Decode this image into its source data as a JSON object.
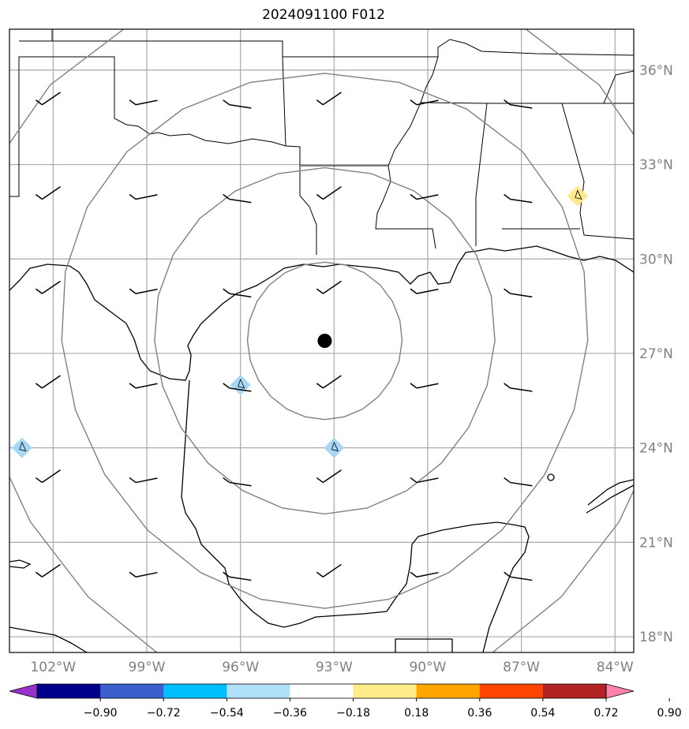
{
  "title": "2024091100 F012",
  "map": {
    "lat_ticks": [
      {
        "value": 36,
        "label": "36°N"
      },
      {
        "value": 33,
        "label": "33°N"
      },
      {
        "value": 30,
        "label": "30°N"
      },
      {
        "value": 27,
        "label": "27°N"
      },
      {
        "value": 24,
        "label": "24°N"
      },
      {
        "value": 21,
        "label": "21°N"
      },
      {
        "value": 18,
        "label": "18°N"
      }
    ],
    "lon_ticks": [
      {
        "value": -102,
        "label": "102°W"
      },
      {
        "value": -99,
        "label": "99°W"
      },
      {
        "value": -96,
        "label": "96°W"
      },
      {
        "value": -93,
        "label": "93°W"
      },
      {
        "value": -90,
        "label": "90°W"
      },
      {
        "value": -87,
        "label": "87°W"
      },
      {
        "value": -84,
        "label": "84°W"
      }
    ],
    "extent": {
      "lon_min": -103.4,
      "lon_max": -83.4,
      "lat_min": 17.5,
      "lat_max": 37.3
    },
    "storm_center": {
      "lon": -93.3,
      "lat": 27.4
    },
    "range_rings_deg": [
      2.5,
      5.5,
      8.5,
      11.5
    ],
    "grid_color": "#a9a9a9",
    "ring_color": "#808080",
    "coast_color": "#000000"
  },
  "wind_barbs": [
    {
      "lon": -102,
      "lat": 35
    },
    {
      "lon": -99,
      "lat": 35
    },
    {
      "lon": -96,
      "lat": 35
    },
    {
      "lon": -93,
      "lat": 35
    },
    {
      "lon": -90,
      "lat": 35
    },
    {
      "lon": -87,
      "lat": 35
    },
    {
      "lon": -102,
      "lat": 32
    },
    {
      "lon": -99,
      "lat": 32
    },
    {
      "lon": -96,
      "lat": 32
    },
    {
      "lon": -93,
      "lat": 32
    },
    {
      "lon": -90,
      "lat": 32
    },
    {
      "lon": -87,
      "lat": 32
    },
    {
      "lon": -102,
      "lat": 29
    },
    {
      "lon": -99,
      "lat": 29
    },
    {
      "lon": -96,
      "lat": 29
    },
    {
      "lon": -93,
      "lat": 29
    },
    {
      "lon": -90,
      "lat": 29
    },
    {
      "lon": -87,
      "lat": 29
    },
    {
      "lon": -102,
      "lat": 26
    },
    {
      "lon": -99,
      "lat": 26
    },
    {
      "lon": -96,
      "lat": 26
    },
    {
      "lon": -93,
      "lat": 26
    },
    {
      "lon": -90,
      "lat": 26
    },
    {
      "lon": -87,
      "lat": 26
    },
    {
      "lon": -102,
      "lat": 23
    },
    {
      "lon": -99,
      "lat": 23
    },
    {
      "lon": -96,
      "lat": 23
    },
    {
      "lon": -93,
      "lat": 23
    },
    {
      "lon": -90,
      "lat": 23
    },
    {
      "lon": -87,
      "lat": 23
    },
    {
      "lon": -102,
      "lat": 20
    },
    {
      "lon": -99,
      "lat": 20
    },
    {
      "lon": -96,
      "lat": 20
    },
    {
      "lon": -93,
      "lat": 20
    },
    {
      "lon": -90,
      "lat": 20
    },
    {
      "lon": -87,
      "lat": 20
    }
  ],
  "contour_blobs": [
    {
      "lon": -93,
      "lat": 24,
      "color": "#a6d8f5"
    },
    {
      "lon": -96,
      "lat": 26,
      "color": "#a6d8f5"
    },
    {
      "lon": -103,
      "lat": 24,
      "color": "#a6d8f5"
    },
    {
      "lon": -85.2,
      "lat": 32,
      "color": "#ffe98a"
    }
  ],
  "colorbar": {
    "colors": [
      "#9932cc",
      "#00008b",
      "#3a5fcd",
      "#00bfff",
      "#b0e0fa",
      "#ffffff",
      "#ffec8b",
      "#ffa500",
      "#ff4500",
      "#b22222",
      "#ff82ab"
    ],
    "labels": [
      "−0.90",
      "−0.72",
      "−0.54",
      "−0.36",
      "−0.18",
      "0.18",
      "0.36",
      "0.54",
      "0.72",
      "0.90"
    ]
  }
}
